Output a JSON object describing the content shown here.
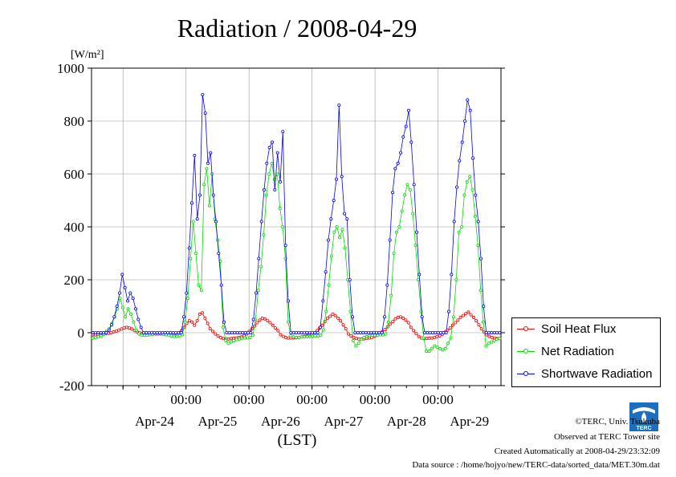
{
  "chart_data": {
    "type": "line",
    "title": "Radiation / 2008-04-29",
    "ylabel": "[W/m²]",
    "xlabel": "(LST)",
    "ylim": [
      -200,
      1000
    ],
    "yticks": [
      "1000",
      "800",
      "600",
      "400",
      "200",
      "0",
      "-200"
    ],
    "ytick_values": [
      1000,
      800,
      600,
      400,
      200,
      0,
      -200
    ],
    "x_start": "2008-04-23 12:00",
    "x_end": "2008-04-29 24:00",
    "x_time_ticks": [
      "00:00",
      "00:00",
      "00:00",
      "00:00",
      "00:00"
    ],
    "x_date_labels": [
      "Apr-24",
      "Apr-25",
      "Apr-26",
      "Apr-27",
      "Apr-28",
      "Apr-29"
    ],
    "grid": true,
    "legend_position": "right",
    "series": [
      {
        "name": "Soil Heat Flux",
        "color": "#ff0000",
        "values": [
          -8,
          -8,
          -7,
          -6,
          -5,
          -4,
          -2,
          0,
          3,
          6,
          10,
          14,
          18,
          20,
          18,
          14,
          8,
          3,
          0,
          -2,
          -3,
          -4,
          -4,
          -5,
          -5,
          -5,
          -5,
          -5,
          -5,
          -6,
          -6,
          -5,
          -4,
          0,
          8,
          20,
          35,
          45,
          40,
          28,
          45,
          70,
          75,
          55,
          35,
          15,
          5,
          -5,
          -12,
          -18,
          -22,
          -24,
          -24,
          -22,
          -21,
          -20,
          -18,
          -16,
          -12,
          -5,
          5,
          15,
          25,
          38,
          48,
          55,
          52,
          45,
          38,
          28,
          18,
          8,
          -8,
          -14,
          -18,
          -20,
          -20,
          -20,
          -19,
          -18,
          -16,
          -14,
          -12,
          -10,
          -6,
          0,
          8,
          18,
          28,
          42,
          55,
          62,
          70,
          65,
          55,
          45,
          30,
          15,
          -5,
          -12,
          -18,
          -22,
          -24,
          -24,
          -23,
          -22,
          -20,
          -18,
          -14,
          -10,
          -4,
          4,
          12,
          22,
          32,
          42,
          52,
          58,
          60,
          55,
          48,
          38,
          20,
          8,
          -4,
          -14,
          -20,
          -22,
          -22,
          -21,
          -20,
          -18,
          -15,
          -12,
          -6,
          2,
          10,
          18,
          28,
          38,
          48,
          58,
          65,
          72,
          78,
          68,
          58,
          45,
          30,
          15,
          2,
          -8,
          -14,
          -18,
          -20,
          -22,
          -22
        ]
      },
      {
        "name": "Net Radiation",
        "color": "#00dd00",
        "values": [
          -20,
          -18,
          -16,
          -12,
          -6,
          5,
          15,
          35,
          60,
          90,
          130,
          95,
          60,
          90,
          70,
          40,
          10,
          -5,
          -10,
          -10,
          -10,
          -8,
          -6,
          -4,
          -4,
          -4,
          -6,
          -8,
          -10,
          -12,
          -14,
          -14,
          -12,
          -8,
          40,
          130,
          280,
          420,
          300,
          180,
          160,
          560,
          620,
          480,
          600,
          430,
          350,
          270,
          20,
          -30,
          -40,
          -35,
          -30,
          -26,
          -24,
          -22,
          -20,
          -20,
          -18,
          -10,
          50,
          160,
          250,
          370,
          520,
          600,
          640,
          580,
          600,
          470,
          400,
          280,
          40,
          -12,
          -16,
          -18,
          -18,
          -16,
          -16,
          -15,
          -15,
          -14,
          -12,
          -12,
          -10,
          10,
          80,
          180,
          290,
          380,
          400,
          360,
          390,
          320,
          200,
          80,
          -30,
          -50,
          -40,
          -25,
          -18,
          -15,
          -12,
          -10,
          -10,
          -10,
          -8,
          -8,
          -5,
          40,
          140,
          300,
          380,
          400,
          460,
          520,
          560,
          540,
          450,
          330,
          200,
          80,
          -20,
          -70,
          -70,
          -60,
          -50,
          -55,
          -60,
          -65,
          -60,
          -40,
          -20,
          60,
          200,
          380,
          400,
          520,
          570,
          590,
          540,
          440,
          330,
          160,
          40,
          -50,
          -40,
          -35,
          -30,
          -25,
          -22
        ]
      },
      {
        "name": "Shortwave Radiation",
        "color": "#0000ff",
        "values": [
          0,
          0,
          0,
          0,
          0,
          0,
          10,
          30,
          60,
          100,
          150,
          220,
          170,
          120,
          150,
          130,
          90,
          50,
          20,
          0,
          0,
          0,
          0,
          0,
          0,
          0,
          0,
          0,
          0,
          0,
          0,
          0,
          0,
          0,
          60,
          150,
          320,
          490,
          670,
          430,
          520,
          900,
          830,
          640,
          680,
          520,
          420,
          300,
          180,
          40,
          0,
          0,
          0,
          0,
          0,
          0,
          0,
          0,
          0,
          0,
          50,
          150,
          280,
          420,
          540,
          640,
          700,
          720,
          540,
          680,
          570,
          760,
          330,
          120,
          0,
          0,
          0,
          0,
          0,
          0,
          0,
          0,
          0,
          0,
          0,
          20,
          120,
          230,
          350,
          430,
          500,
          580,
          860,
          590,
          450,
          430,
          200,
          60,
          0,
          0,
          0,
          0,
          0,
          0,
          0,
          0,
          0,
          0,
          0,
          60,
          180,
          350,
          530,
          620,
          640,
          680,
          740,
          780,
          840,
          720,
          560,
          380,
          220,
          60,
          0,
          0,
          0,
          0,
          0,
          0,
          0,
          0,
          0,
          80,
          220,
          420,
          550,
          650,
          720,
          800,
          880,
          840,
          660,
          520,
          420,
          280,
          100,
          0,
          0,
          0,
          0,
          0,
          0
        ]
      }
    ]
  },
  "footer": {
    "copyright": "©TERC, Univ. Tsukuba",
    "observed": "Observed at TERC Tower site",
    "created": "Created Automatically at 2008-04-29/23:32:09",
    "source": "Data source : /home/hojyo/new/TERC-data/sorted_data/MET.30m.dat"
  },
  "logo_text": "TERC"
}
